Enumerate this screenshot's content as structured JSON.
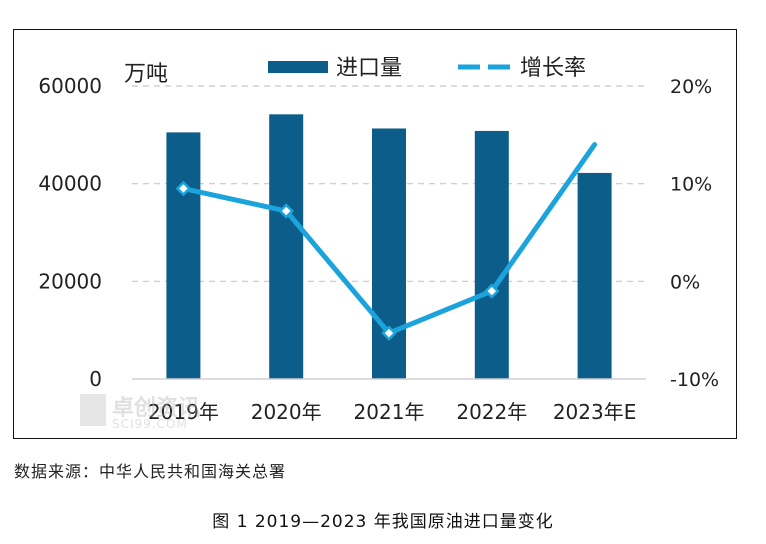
{
  "chart_data": {
    "type": "bar+line",
    "categories": [
      "2019年",
      "2020年",
      "2021年",
      "2022年",
      "2023年E"
    ],
    "series": [
      {
        "name": "进口量",
        "type": "bar",
        "axis": "left",
        "color": "#0d5d8a",
        "values": [
          50500,
          54200,
          51300,
          50800,
          42200
        ]
      },
      {
        "name": "增长率",
        "type": "line",
        "axis": "right",
        "color": "#1ba3dc",
        "values": [
          9.5,
          7.2,
          -5.3,
          -1.0,
          14.0
        ]
      }
    ],
    "left_axis": {
      "unit_label": "万吨",
      "min": 0,
      "max": 60000,
      "ticks": [
        "0",
        "20000",
        "40000",
        "60000"
      ]
    },
    "right_axis": {
      "min": -10,
      "max": 20,
      "ticks": [
        "-10%",
        "0%",
        "10%",
        "20%"
      ]
    },
    "grid": true,
    "legend_position": "top"
  },
  "watermark": {
    "text": "卓创资讯",
    "subtext": "SCI99.COM"
  },
  "source_note": "数据来源：中华人民共和国海关总署",
  "caption": "图 1  2019—2023 年我国原油进口量变化",
  "colors": {
    "bar": "#0d5d8a",
    "line": "#1ba3dc",
    "grid": "#c8c8c8"
  }
}
